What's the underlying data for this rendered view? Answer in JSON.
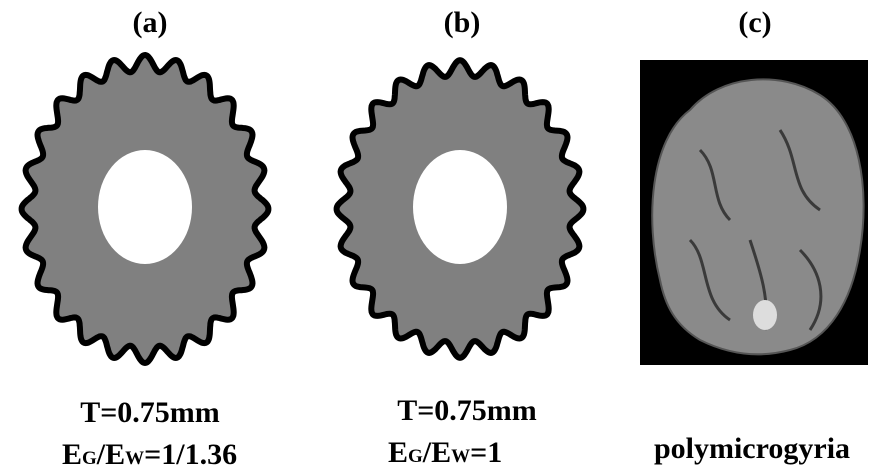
{
  "panels": [
    {
      "label": "(a)",
      "thickness": "T=0.75mm",
      "ratio": [
        "E",
        "G",
        "/E",
        "W",
        "=1/1.36"
      ]
    },
    {
      "label": "(b)",
      "thickness": "T=0.75mm",
      "ratio": [
        "E",
        "G",
        "/E",
        "W",
        "=1"
      ]
    },
    {
      "label": "(c)",
      "caption": "polymicrogyria"
    }
  ]
}
